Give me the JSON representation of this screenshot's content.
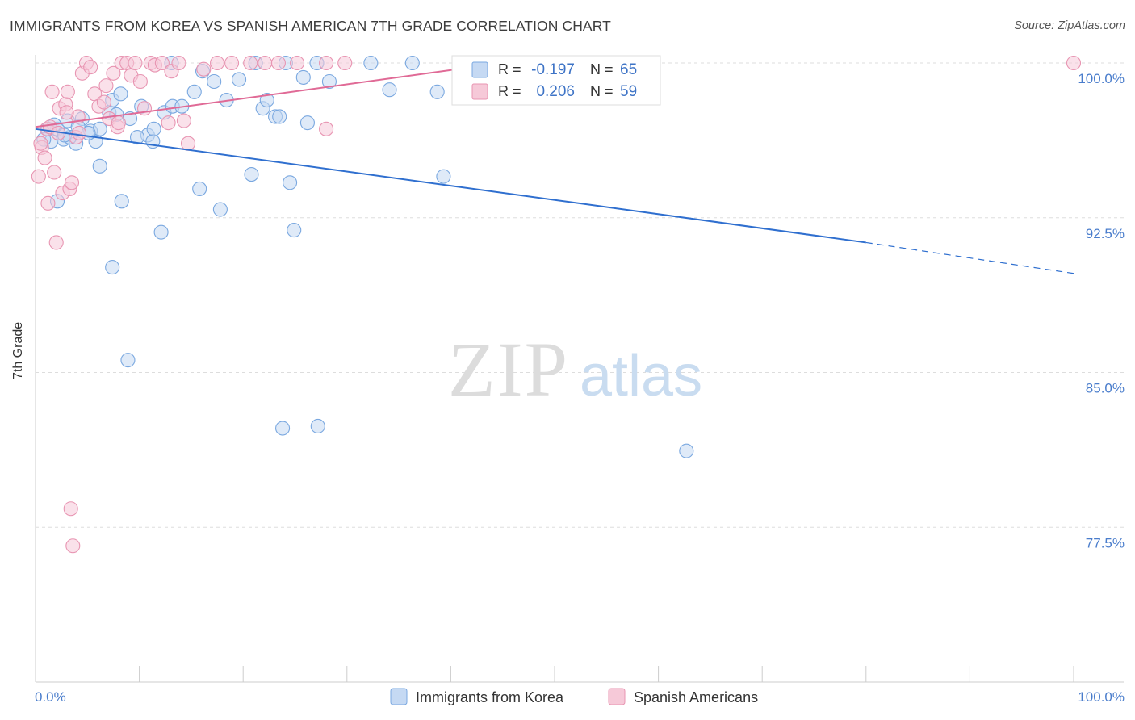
{
  "title": "IMMIGRANTS FROM KOREA VS SPANISH AMERICAN 7TH GRADE CORRELATION CHART",
  "source": "Source: ZipAtlas.com",
  "watermark": {
    "zip": "ZIP",
    "atlas": "atlas"
  },
  "chart_data": {
    "type": "scatter",
    "title": "IMMIGRANTS FROM KOREA VS SPANISH AMERICAN 7TH GRADE CORRELATION CHART",
    "xlabel": "",
    "ylabel": "7th Grade",
    "xlim": [
      0,
      100
    ],
    "ylim": [
      70,
      100.5
    ],
    "x_tick_labels": [
      "0.0%",
      "100.0%"
    ],
    "y_ticks": [
      77.5,
      85.0,
      92.5,
      100.0
    ],
    "y_tick_labels": [
      "77.5%",
      "85.0%",
      "92.5%",
      "100.0%"
    ],
    "grid": true,
    "legend_position": "top-center",
    "series": [
      {
        "name": "Immigrants from Korea",
        "color": "#7aa8e0",
        "fill": "#c5d9f3",
        "line_color": "#2f6fcf",
        "r": "-0.197",
        "n": "65",
        "trend": {
          "x0": 0,
          "y0": 96.8,
          "x1": 80,
          "y1": 91.3,
          "dash_to_x": 100,
          "dash_to_y": 89.8
        },
        "points": [
          [
            1.2,
            96.8
          ],
          [
            1.5,
            96.2
          ],
          [
            2.1,
            96.8
          ],
          [
            2.7,
            96.3
          ],
          [
            3.1,
            97.2
          ],
          [
            3.9,
            96.1
          ],
          [
            4.5,
            97.3
          ],
          [
            5.3,
            96.7
          ],
          [
            5.8,
            96.2
          ],
          [
            6.2,
            96.8
          ],
          [
            7.1,
            97.6
          ],
          [
            7.4,
            98.2
          ],
          [
            8.2,
            98.5
          ],
          [
            9.1,
            97.3
          ],
          [
            10.2,
            97.9
          ],
          [
            10.8,
            96.5
          ],
          [
            11.3,
            96.2
          ],
          [
            12.4,
            97.6
          ],
          [
            13.2,
            97.9
          ],
          [
            14.1,
            97.9
          ],
          [
            15.3,
            98.6
          ],
          [
            16.1,
            99.6
          ],
          [
            17.2,
            99.1
          ],
          [
            18.4,
            98.2
          ],
          [
            19.6,
            99.2
          ],
          [
            21.2,
            100
          ],
          [
            21.9,
            97.8
          ],
          [
            22.3,
            98.2
          ],
          [
            23.1,
            97.4
          ],
          [
            23.5,
            97.4
          ],
          [
            24.1,
            100
          ],
          [
            25.8,
            99.3
          ],
          [
            26.2,
            97.1
          ],
          [
            27.1,
            100
          ],
          [
            28.3,
            99.1
          ],
          [
            32.3,
            100
          ],
          [
            34.1,
            98.7
          ],
          [
            36.3,
            100
          ],
          [
            38.7,
            98.6
          ],
          [
            42.1,
            100
          ],
          [
            13.1,
            100
          ],
          [
            11.4,
            96.8
          ],
          [
            6.2,
            95.0
          ],
          [
            8.3,
            93.3
          ],
          [
            2.1,
            93.3
          ],
          [
            12.1,
            91.8
          ],
          [
            15.8,
            93.9
          ],
          [
            17.8,
            92.9
          ],
          [
            20.8,
            94.6
          ],
          [
            24.5,
            94.2
          ],
          [
            24.9,
            91.9
          ],
          [
            7.4,
            90.1
          ],
          [
            8.9,
            85.6
          ],
          [
            23.8,
            82.3
          ],
          [
            27.2,
            82.4
          ],
          [
            62.7,
            81.2
          ],
          [
            39.3,
            94.5
          ],
          [
            3.3,
            96.4
          ],
          [
            1.8,
            97.0
          ],
          [
            9.8,
            96.4
          ],
          [
            4.1,
            96.9
          ],
          [
            7.8,
            97.5
          ],
          [
            0.8,
            96.3
          ],
          [
            2.8,
            96.5
          ],
          [
            5.1,
            96.6
          ]
        ]
      },
      {
        "name": "Spanish Americans",
        "color": "#e895b2",
        "fill": "#f6c9d8",
        "line_color": "#e06a96",
        "r": "0.206",
        "n": "59",
        "trend": {
          "x0": 0,
          "y0": 96.9,
          "x1": 45,
          "y1": 100.0
        },
        "points": [
          [
            0.3,
            94.5
          ],
          [
            0.6,
            95.9
          ],
          [
            0.9,
            95.4
          ],
          [
            1.1,
            96.8
          ],
          [
            1.4,
            96.9
          ],
          [
            1.6,
            98.6
          ],
          [
            1.8,
            94.7
          ],
          [
            2.0,
            91.3
          ],
          [
            2.3,
            97.8
          ],
          [
            2.6,
            93.7
          ],
          [
            2.9,
            98.0
          ],
          [
            3.1,
            98.6
          ],
          [
            3.3,
            93.9
          ],
          [
            3.5,
            94.2
          ],
          [
            3.9,
            96.4
          ],
          [
            4.1,
            97.4
          ],
          [
            4.5,
            99.5
          ],
          [
            4.9,
            100
          ],
          [
            5.3,
            99.8
          ],
          [
            5.7,
            98.5
          ],
          [
            6.1,
            97.9
          ],
          [
            6.6,
            98.1
          ],
          [
            7.1,
            97.3
          ],
          [
            7.5,
            99.5
          ],
          [
            7.9,
            96.9
          ],
          [
            8.3,
            100
          ],
          [
            8.8,
            100
          ],
          [
            9.2,
            99.4
          ],
          [
            9.6,
            100
          ],
          [
            10.1,
            99.1
          ],
          [
            10.5,
            97.8
          ],
          [
            11.1,
            100
          ],
          [
            11.5,
            99.9
          ],
          [
            12.2,
            100
          ],
          [
            13.1,
            99.6
          ],
          [
            13.8,
            100
          ],
          [
            14.3,
            97.2
          ],
          [
            16.2,
            99.7
          ],
          [
            17.5,
            100
          ],
          [
            18.9,
            100
          ],
          [
            20.7,
            100
          ],
          [
            22.1,
            100
          ],
          [
            23.4,
            100
          ],
          [
            25.2,
            100
          ],
          [
            28.0,
            100
          ],
          [
            29.8,
            100
          ],
          [
            2.2,
            96.6
          ],
          [
            3.0,
            97.6
          ],
          [
            4.2,
            96.6
          ],
          [
            6.8,
            98.9
          ],
          [
            8.0,
            97.1
          ],
          [
            12.8,
            97.1
          ],
          [
            14.7,
            96.1
          ],
          [
            3.4,
            78.4
          ],
          [
            3.6,
            76.6
          ],
          [
            1.2,
            93.2
          ],
          [
            28.0,
            96.8
          ],
          [
            100,
            100
          ],
          [
            0.5,
            96.1
          ]
        ]
      }
    ]
  },
  "legend_stats": {
    "r_label": "R =",
    "n_label": "N ="
  }
}
